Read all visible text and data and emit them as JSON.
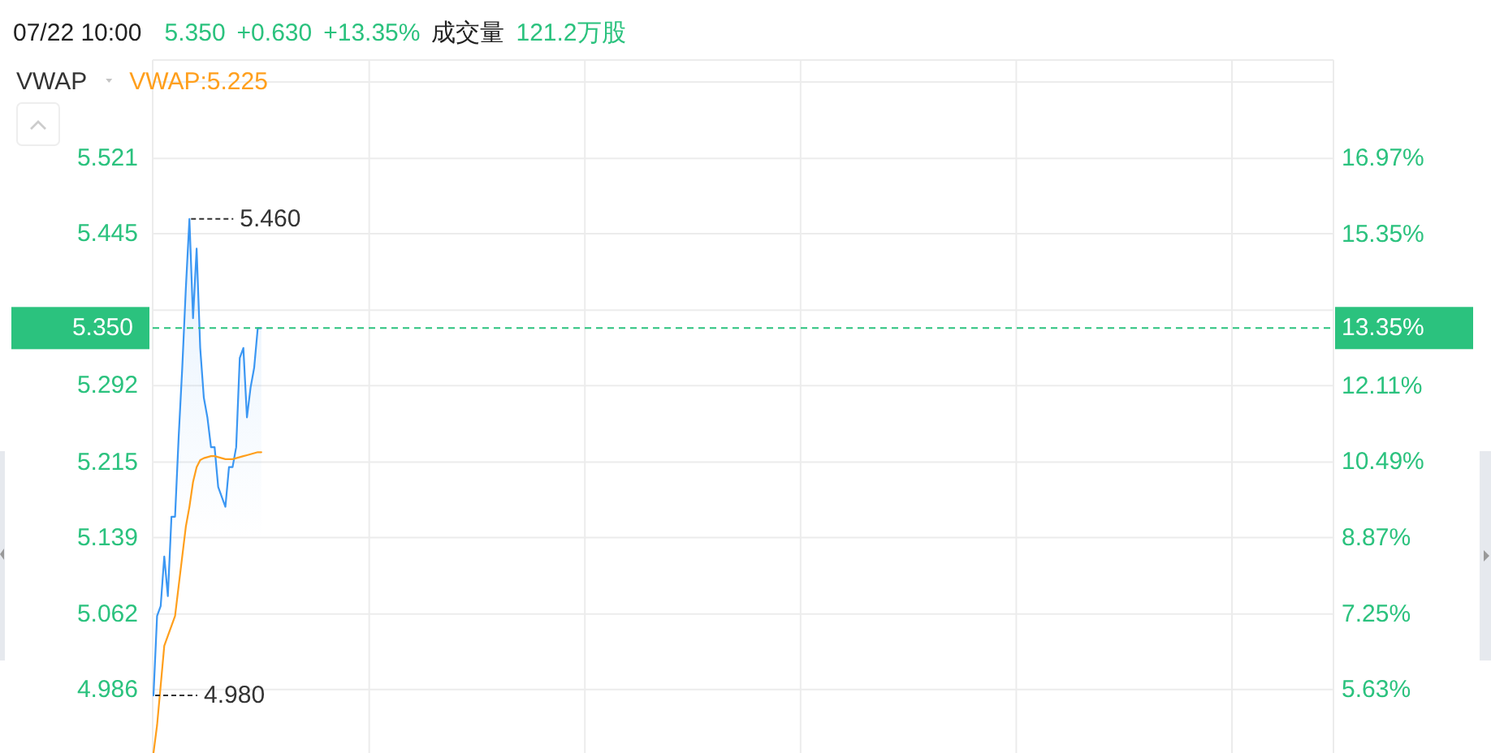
{
  "chart_data": {
    "type": "line",
    "title": "07/22 10:00",
    "legend_title": "VWAP",
    "legend": "top left",
    "grid": true,
    "annotations": [
      "5.350",
      "+0.630",
      "+13.35%",
      "成交量",
      "121.2万股",
      "5.460",
      "4.980"
    ],
    "categories": [
      null,
      null,
      null,
      null,
      null,
      null,
      null,
      null,
      null,
      null,
      null,
      null,
      null,
      null,
      null,
      null,
      null,
      null,
      null,
      null,
      null,
      null,
      null,
      null,
      null,
      null,
      null,
      null,
      null,
      null,
      null,
      null,
      null,
      null,
      null,
      null,
      null,
      null,
      null,
      null,
      null,
      null,
      null,
      null,
      null,
      null,
      null,
      null,
      null,
      null,
      null,
      null,
      null,
      null,
      null,
      null,
      null,
      null,
      null,
      null,
      null,
      null,
      null,
      null,
      null,
      null,
      null,
      null,
      null,
      null,
      null,
      null,
      null,
      null,
      null,
      null,
      null,
      null,
      null,
      null,
      null,
      null,
      null,
      null,
      null,
      null,
      null,
      null,
      null,
      null,
      null,
      null,
      null,
      null,
      null,
      null,
      null,
      null,
      null,
      null,
      null,
      null,
      null,
      null,
      null,
      null,
      null,
      null,
      null,
      null,
      null,
      null,
      null,
      null,
      null,
      null,
      null,
      null,
      null,
      null,
      null,
      null,
      null,
      null,
      null,
      null,
      null,
      null,
      null,
      null,
      null,
      null,
      null,
      null,
      null,
      null,
      null,
      null,
      null,
      null,
      null,
      null,
      null,
      null,
      null,
      null,
      null,
      null,
      null,
      null,
      null,
      null,
      null,
      null,
      null,
      null,
      null,
      null,
      null,
      null,
      null,
      null,
      null,
      null,
      null,
      null,
      null,
      null,
      null,
      null,
      null,
      null,
      null,
      null,
      null,
      null,
      null,
      null,
      null,
      null,
      null,
      null,
      null,
      null,
      null,
      null,
      null,
      null,
      null,
      null,
      null,
      null,
      null,
      null,
      null,
      null,
      null,
      null,
      null,
      null,
      null,
      null,
      null,
      null,
      null,
      null,
      null,
      null,
      null,
      null,
      null,
      null,
      null,
      null,
      null,
      null,
      null,
      null,
      null,
      null,
      null,
      null,
      null,
      null,
      null,
      null,
      null,
      null,
      null,
      null,
      null,
      null,
      null,
      null,
      null,
      null,
      null,
      null,
      null,
      null,
      null,
      null,
      null,
      null,
      null,
      null,
      null,
      null,
      null,
      null,
      null,
      null,
      null,
      null,
      null,
      null,
      null,
      null,
      null,
      null,
      null,
      null,
      null,
      null,
      null,
      null,
      null,
      null,
      null,
      null,
      null,
      null,
      null,
      null,
      null,
      null,
      null,
      null,
      null,
      null,
      null,
      null,
      null,
      null,
      null,
      null,
      null,
      null,
      null,
      null,
      null,
      null,
      null,
      null,
      null,
      null,
      null,
      null,
      null,
      null,
      null,
      null,
      null,
      null,
      null,
      null,
      null,
      null,
      null,
      null,
      null,
      null,
      null,
      null,
      null,
      null,
      null,
      null,
      null,
      null,
      null,
      null,
      null,
      null,
      null,
      null,
      null,
      null,
      null
    ],
    "series": [
      {
        "type": "area",
        "color": "#3b97f3",
        "values": [
          4.98,
          5.06,
          5.07,
          5.12,
          5.08,
          5.16,
          5.16,
          5.24,
          5.31,
          5.39,
          5.46,
          5.36,
          5.43,
          5.33,
          5.28,
          5.26,
          5.23,
          5.23,
          5.19,
          5.18,
          5.17,
          5.21,
          5.21,
          5.23,
          5.32,
          5.33,
          5.26,
          5.29,
          5.31,
          5.35,
          5.35,
          null,
          null,
          null,
          null,
          null,
          null,
          null,
          null,
          null,
          null,
          null,
          null,
          null,
          null,
          null,
          null,
          null,
          null,
          null,
          null,
          null,
          null,
          null,
          null,
          null,
          null,
          null,
          null,
          null,
          null,
          null,
          null,
          null,
          null,
          null,
          null,
          null,
          null,
          null,
          null,
          null,
          null,
          null,
          null,
          null,
          null,
          null,
          null,
          null,
          null,
          null,
          null,
          null,
          null,
          null,
          null,
          null,
          null,
          null,
          null,
          null,
          null,
          null,
          null,
          null,
          null,
          null,
          null,
          null,
          null,
          null,
          null,
          null,
          null,
          null,
          null,
          null,
          null,
          null,
          null,
          null,
          null,
          null,
          null,
          null,
          null,
          null,
          null,
          null,
          null,
          null,
          null,
          null,
          null,
          null,
          null,
          null,
          null,
          null,
          null,
          null,
          null,
          null,
          null,
          null,
          null,
          null,
          null,
          null,
          null,
          null,
          null,
          null,
          null,
          null,
          null,
          null,
          null,
          null,
          null,
          null,
          null,
          null,
          null,
          null,
          null,
          null,
          null,
          null,
          null,
          null,
          null,
          null,
          null,
          null,
          null,
          null,
          null,
          null,
          null,
          null,
          null,
          null,
          null,
          null,
          null,
          null,
          null,
          null,
          null,
          null,
          null,
          null,
          null,
          null,
          null,
          null,
          null,
          null,
          null,
          null,
          null,
          null,
          null,
          null,
          null,
          null,
          null,
          null,
          null,
          null,
          null,
          null,
          null,
          null,
          null,
          null,
          null,
          null,
          null,
          null,
          null,
          null,
          null,
          null,
          null,
          null,
          null,
          null,
          null,
          null,
          null,
          null,
          null,
          null,
          null,
          null,
          null,
          null,
          null,
          null,
          null,
          null,
          null,
          null,
          null,
          null,
          null,
          null,
          null,
          null,
          null,
          null,
          null,
          null,
          null,
          null,
          null,
          null,
          null,
          null,
          null,
          null,
          null,
          null,
          null,
          null,
          null,
          null,
          null,
          null,
          null,
          null,
          null,
          null,
          null,
          null,
          null,
          null,
          null,
          null,
          null,
          null,
          null,
          null,
          null,
          null,
          null,
          null,
          null,
          null,
          null,
          null,
          null,
          null,
          null,
          null,
          null,
          null,
          null,
          null,
          null,
          null,
          null,
          null,
          null,
          null,
          null,
          null,
          null,
          null,
          null,
          null,
          null,
          null,
          null,
          null,
          null,
          null,
          null,
          null,
          null,
          null,
          null,
          null,
          null,
          null,
          null,
          null,
          null,
          null,
          null,
          null,
          null,
          null,
          null,
          null,
          null
        ]
      },
      {
        "name": "VWAP:5.225",
        "color": "#ff9f1c",
        "values": [
          4.922,
          4.95,
          4.99,
          5.03,
          5.04,
          5.05,
          5.06,
          5.09,
          5.12,
          5.15,
          5.17,
          5.195,
          5.21,
          5.217,
          5.219,
          5.22,
          5.221,
          5.221,
          5.22,
          5.219,
          5.218,
          5.218,
          5.218,
          5.219,
          5.22,
          5.221,
          5.222,
          5.223,
          5.224,
          5.225,
          5.225,
          null,
          null,
          null,
          null,
          null,
          null,
          null,
          null,
          null,
          null,
          null,
          null,
          null,
          null,
          null,
          null,
          null,
          null,
          null,
          null,
          null,
          null,
          null,
          null,
          null,
          null,
          null,
          null,
          null,
          null,
          null,
          null,
          null,
          null,
          null,
          null,
          null,
          null,
          null,
          null,
          null,
          null,
          null,
          null,
          null,
          null,
          null,
          null,
          null,
          null,
          null,
          null,
          null,
          null,
          null,
          null,
          null,
          null,
          null,
          null,
          null,
          null,
          null,
          null,
          null,
          null,
          null,
          null,
          null,
          null,
          null,
          null,
          null,
          null,
          null,
          null,
          null,
          null,
          null,
          null,
          null,
          null,
          null,
          null,
          null,
          null,
          null,
          null,
          null,
          null,
          null,
          null,
          null,
          null,
          null,
          null,
          null,
          null,
          null,
          null,
          null,
          null,
          null,
          null,
          null,
          null,
          null,
          null,
          null,
          null,
          null,
          null,
          null,
          null,
          null,
          null,
          null,
          null,
          null,
          null,
          null,
          null,
          null,
          null,
          null,
          null,
          null,
          null,
          null,
          null,
          null,
          null,
          null,
          null,
          null,
          null,
          null,
          null,
          null,
          null,
          null,
          null,
          null,
          null,
          null,
          null,
          null,
          null,
          null,
          null,
          null,
          null,
          null,
          null,
          null,
          null,
          null,
          null,
          null,
          null,
          null,
          null,
          null,
          null,
          null,
          null,
          null,
          null,
          null,
          null,
          null,
          null,
          null,
          null,
          null,
          null,
          null,
          null,
          null,
          null,
          null,
          null,
          null,
          null,
          null,
          null,
          null,
          null,
          null,
          null,
          null,
          null,
          null,
          null,
          null,
          null,
          null,
          null,
          null,
          null,
          null,
          null,
          null,
          null,
          null,
          null,
          null,
          null,
          null,
          null,
          null,
          null,
          null,
          null,
          null,
          null,
          null,
          null,
          null,
          null,
          null,
          null,
          null,
          null,
          null,
          null,
          null,
          null,
          null,
          null,
          null,
          null,
          null,
          null,
          null,
          null,
          null,
          null,
          null,
          null,
          null,
          null,
          null,
          null,
          null,
          null,
          null,
          null,
          null,
          null,
          null,
          null,
          null,
          null,
          null,
          null,
          null,
          null,
          null,
          null,
          null,
          null,
          null,
          null,
          null,
          null,
          null,
          null,
          null,
          null,
          null,
          null,
          null,
          null,
          null,
          null,
          null,
          null,
          null,
          null,
          null,
          null,
          null,
          null,
          null,
          null,
          null,
          null,
          null,
          null,
          null,
          null,
          null,
          null,
          null,
          null,
          null,
          null
        ]
      }
    ],
    "ylim": [
      4.922,
      5.62
    ],
    "yticks": [
      4.986,
      5.062,
      5.139,
      5.215,
      5.292,
      {
        "value": 5.368,
        "label": null
      },
      5.445,
      5.521,
      {
        "value": 5.598,
        "label": null
      }
    ],
    "y2lim": [
      4.28,
      19.07
    ],
    "y2ticks": [
      {
        "value": 5.63,
        "label": "5.63%"
      },
      {
        "value": 7.25,
        "label": "7.25%"
      },
      {
        "value": 8.87,
        "label": "8.87%"
      },
      {
        "value": 10.49,
        "label": "10.49%"
      },
      {
        "value": 12.11,
        "label": "12.11%"
      },
      {
        "value": 13.35,
        "label": "13.35%"
      },
      {
        "value": 15.35,
        "label": "15.35%"
      },
      {
        "value": 16.97,
        "label": "16.97%"
      }
    ],
    "ref_lines": [
      {
        "axis": "y",
        "value": 5.35,
        "label": "5.350",
        "color": "#2bc27e",
        "line_style": "dashed"
      }
    ]
  }
}
